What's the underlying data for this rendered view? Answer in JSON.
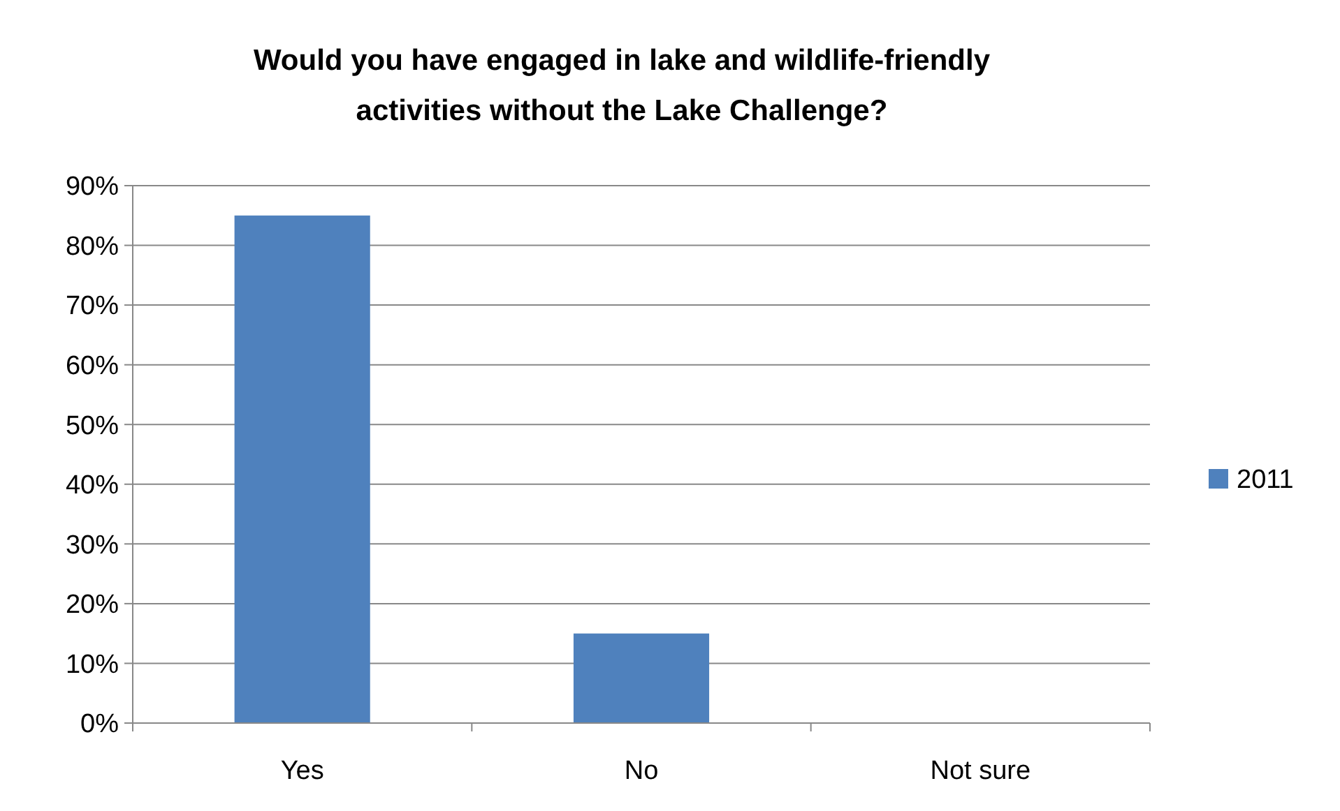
{
  "chart_data": {
    "type": "bar",
    "title": "Would you have engaged in lake and wildlife-friendly\nactivities without the Lake Challenge?",
    "categories": [
      "Yes",
      "No",
      "Not sure"
    ],
    "series": [
      {
        "name": "2011",
        "color": "#4f81bd",
        "values": [
          85,
          15,
          0
        ]
      }
    ],
    "ylim": [
      0,
      90
    ],
    "yticks": [
      {
        "value": 0,
        "label": "0%"
      },
      {
        "value": 10,
        "label": "10%"
      },
      {
        "value": 20,
        "label": "20%"
      },
      {
        "value": 30,
        "label": "30%"
      },
      {
        "value": 40,
        "label": "40%"
      },
      {
        "value": 50,
        "label": "50%"
      },
      {
        "value": 60,
        "label": "60%"
      },
      {
        "value": 70,
        "label": "70%"
      },
      {
        "value": 80,
        "label": "80%"
      },
      {
        "value": 90,
        "label": "90%"
      }
    ],
    "grid": "y",
    "legend": "right"
  }
}
